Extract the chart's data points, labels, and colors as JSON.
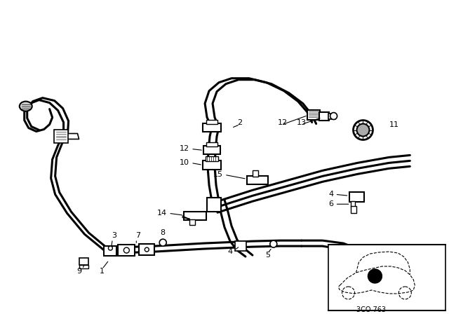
{
  "bg_color": "#ffffff",
  "line_color": "#000000",
  "diagram_code": "3CO 763",
  "lw_hose": 2.2,
  "lw_thin": 1.0,
  "lw_med": 1.5
}
